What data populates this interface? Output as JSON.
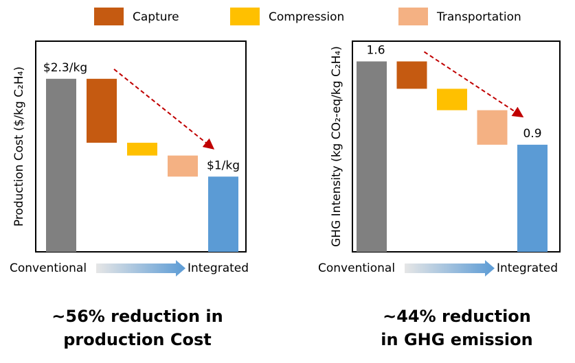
{
  "legend": [
    {
      "name": "Capture",
      "color": "#c55a11"
    },
    {
      "name": "Compression",
      "color": "#ffc000"
    },
    {
      "name": "Transportation",
      "color": "#f4b183"
    }
  ],
  "chart_data": [
    {
      "type": "waterfall",
      "ylabel": "Production Cost ($/kg C₂H₄)",
      "values": [
        2.3,
        0.85,
        0.17,
        0.28,
        1
      ],
      "value_labels": [
        "$2.3/kg",
        null,
        null,
        null,
        "$1/kg"
      ],
      "colors": [
        "#808080",
        "#c55a11",
        "#ffc000",
        "#f4b183",
        "#5b9bd5"
      ],
      "ylim": [
        0,
        2.8
      ],
      "x_start": "Conventional",
      "x_end": "Integrated",
      "caption": [
        "~56% reduction in",
        "production Cost"
      ]
    },
    {
      "type": "waterfall",
      "ylabel": "GHG Intensity (kg CO₂-eq/kg C₂H₄)",
      "values": [
        1.6,
        0.23,
        0.18,
        0.29,
        0.9
      ],
      "value_labels": [
        "1.6",
        null,
        null,
        null,
        "0.9"
      ],
      "colors": [
        "#808080",
        "#c55a11",
        "#ffc000",
        "#f4b183",
        "#5b9bd5"
      ],
      "ylim": [
        0,
        1.77
      ],
      "x_start": "Conventional",
      "x_end": "Integrated",
      "caption": [
        "~44% reduction",
        "in GHG emission"
      ]
    }
  ]
}
